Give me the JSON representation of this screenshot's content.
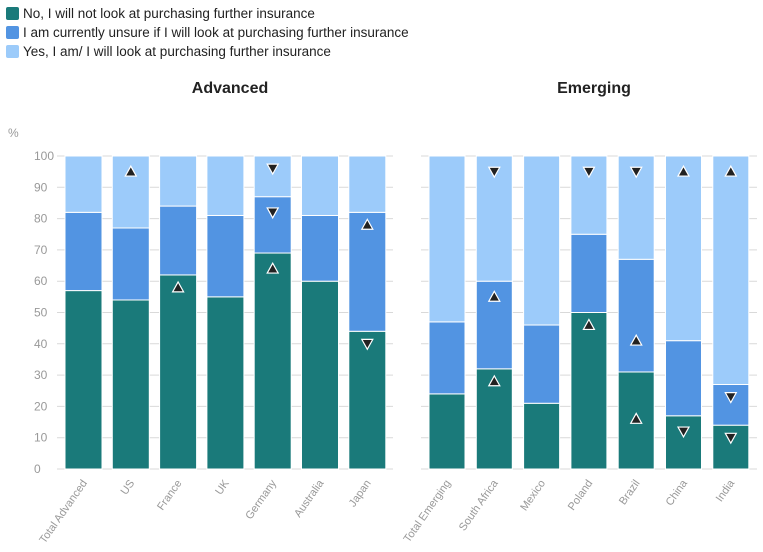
{
  "legend": {
    "items": [
      {
        "label": "No, I will not look at purchasing further insurance",
        "color": "#1a7a7a"
      },
      {
        "label": "I am currently unsure if I will look at purchasing further insurance",
        "color": "#5294e2"
      },
      {
        "label": "Yes, I am/ I will look at purchasing further insurance",
        "color": "#9ccbfa"
      }
    ]
  },
  "colors": {
    "no": "#1a7a7a",
    "unsure": "#5294e2",
    "yes": "#9ccbfa",
    "grid": "#d9d9d9",
    "marker": "#222222"
  },
  "chart_data": [
    {
      "type": "bar",
      "stacked": true,
      "title": "Advanced",
      "ylabel": "%",
      "ylim": [
        0,
        100
      ],
      "yticks": [
        0,
        10,
        20,
        30,
        40,
        50,
        60,
        70,
        80,
        90,
        100
      ],
      "grid": true,
      "categories": [
        "Total Advanced",
        "US",
        "France",
        "UK",
        "Germany",
        "Australia",
        "Japan"
      ],
      "series": [
        {
          "name": "No, I will not look at purchasing further insurance",
          "values": [
            57,
            54,
            62,
            55,
            69,
            60,
            44
          ]
        },
        {
          "name": "I am currently unsure if I will look at purchasing further insurance",
          "values": [
            25,
            23,
            22,
            26,
            18,
            21,
            38
          ]
        },
        {
          "name": "Yes, I am/ I will look at purchasing further insurance",
          "values": [
            18,
            23,
            16,
            19,
            13,
            19,
            18
          ]
        }
      ],
      "markers": [
        {
          "category": "US",
          "value": 95,
          "direction": "up"
        },
        {
          "category": "France",
          "value": 58,
          "direction": "up"
        },
        {
          "category": "Germany",
          "value": 96,
          "direction": "down"
        },
        {
          "category": "Germany",
          "value": 82,
          "direction": "down"
        },
        {
          "category": "Germany",
          "value": 64,
          "direction": "up"
        },
        {
          "category": "Japan",
          "value": 78,
          "direction": "up"
        },
        {
          "category": "Japan",
          "value": 40,
          "direction": "down"
        }
      ]
    },
    {
      "type": "bar",
      "stacked": true,
      "title": "Emerging",
      "ylim": [
        0,
        100
      ],
      "grid": true,
      "categories": [
        "Total Emerging",
        "South Africa",
        "Mexico",
        "Poland",
        "Brazil",
        "China",
        "India"
      ],
      "series": [
        {
          "name": "No, I will not look at purchasing further insurance",
          "values": [
            24,
            32,
            21,
            50,
            31,
            17,
            14
          ]
        },
        {
          "name": "I am currently unsure if I will look at purchasing further insurance",
          "values": [
            23,
            28,
            25,
            25,
            36,
            24,
            13
          ]
        },
        {
          "name": "Yes, I am/ I will look at purchasing further insurance",
          "values": [
            53,
            40,
            54,
            25,
            33,
            59,
            73
          ]
        }
      ],
      "markers": [
        {
          "category": "South Africa",
          "value": 95,
          "direction": "down"
        },
        {
          "category": "South Africa",
          "value": 55,
          "direction": "up"
        },
        {
          "category": "South Africa",
          "value": 28,
          "direction": "up"
        },
        {
          "category": "Poland",
          "value": 95,
          "direction": "down"
        },
        {
          "category": "Poland",
          "value": 46,
          "direction": "up"
        },
        {
          "category": "Brazil",
          "value": 95,
          "direction": "down"
        },
        {
          "category": "Brazil",
          "value": 41,
          "direction": "up"
        },
        {
          "category": "Brazil",
          "value": 16,
          "direction": "up"
        },
        {
          "category": "China",
          "value": 95,
          "direction": "up"
        },
        {
          "category": "China",
          "value": 12,
          "direction": "down"
        },
        {
          "category": "India",
          "value": 95,
          "direction": "up"
        },
        {
          "category": "India",
          "value": 23,
          "direction": "down"
        },
        {
          "category": "India",
          "value": 10,
          "direction": "down"
        }
      ]
    }
  ]
}
